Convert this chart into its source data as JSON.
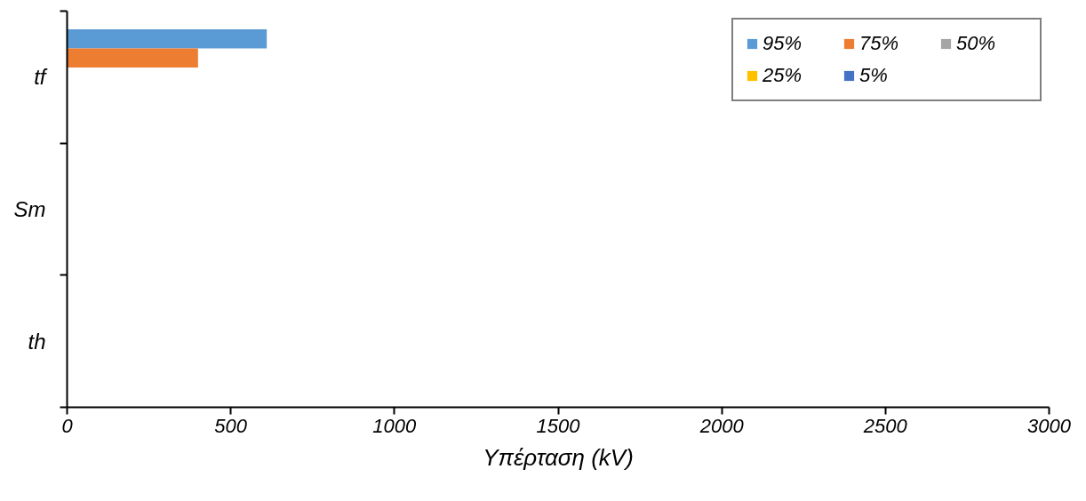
{
  "chart_data": {
    "type": "bar",
    "orientation": "horizontal",
    "xlabel": "Υπέρταση (kV)",
    "categories": [
      "tf",
      "Sm",
      "th"
    ],
    "series": [
      {
        "name": "95%",
        "color": "#5b9bd5",
        "values": [
          610,
          null,
          null
        ]
      },
      {
        "name": "75%",
        "color": "#ed7d31",
        "values": [
          400,
          null,
          null
        ]
      },
      {
        "name": "50%",
        "color": "#a5a5a5",
        "values": [
          0,
          null,
          null
        ]
      },
      {
        "name": "25%",
        "color": "#ffc000",
        "values": [
          0,
          null,
          null
        ]
      },
      {
        "name": "5%",
        "color": "#4472c4",
        "values": [
          0,
          null,
          null
        ]
      }
    ],
    "xlim": [
      0,
      3000
    ],
    "xticks": [
      0,
      500,
      1000,
      1500,
      2000,
      2500,
      3000
    ],
    "legend": "top right"
  }
}
